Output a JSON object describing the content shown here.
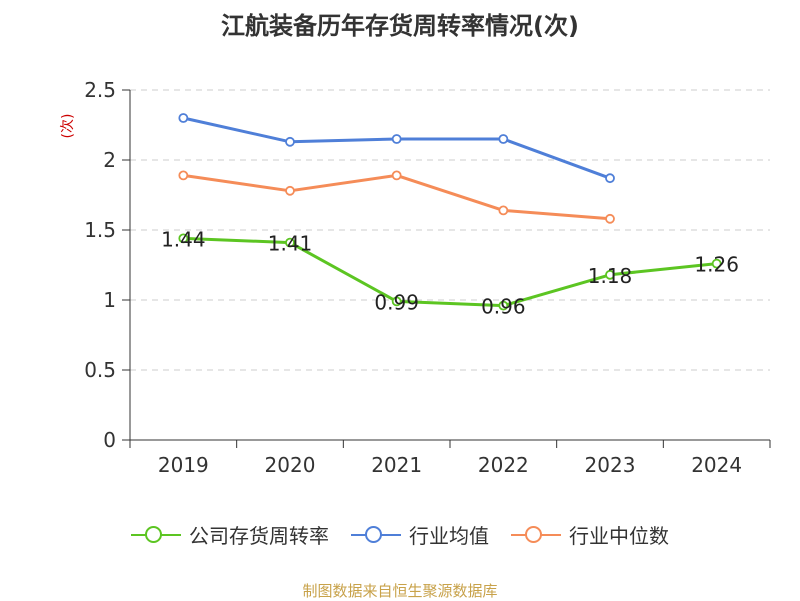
{
  "title": "江航装备历年存货周转率情况(次)",
  "source": "制图数据来自恒生聚源数据库",
  "chart_data": {
    "type": "line",
    "title": "江航装备历年存货周转率情况(次)",
    "ylabel": "(次)",
    "xlabel": "",
    "categories": [
      "2019",
      "2020",
      "2021",
      "2022",
      "2023",
      "2024"
    ],
    "ylim": [
      0,
      2.5
    ],
    "yticks": [
      0,
      0.5,
      1,
      1.5,
      2,
      2.5
    ],
    "ytick_labels": [
      "0",
      "0.5",
      "1",
      "1.5",
      "2",
      "2.5"
    ],
    "grid": true,
    "legend_position": "bottom",
    "series": [
      {
        "name": "公司存货周转率",
        "color": "#5cc522",
        "values": [
          1.44,
          1.41,
          0.99,
          0.96,
          1.18,
          1.26
        ],
        "labels": [
          "1.44",
          "1.41",
          "0.99",
          "0.96",
          "1.18",
          "1.26"
        ]
      },
      {
        "name": "行业均值",
        "color": "#4f7fd8",
        "values": [
          2.3,
          2.13,
          2.15,
          2.15,
          1.87,
          null
        ]
      },
      {
        "name": "行业中位数",
        "color": "#f58c58",
        "values": [
          1.89,
          1.78,
          1.89,
          1.64,
          1.58,
          null
        ]
      }
    ]
  }
}
